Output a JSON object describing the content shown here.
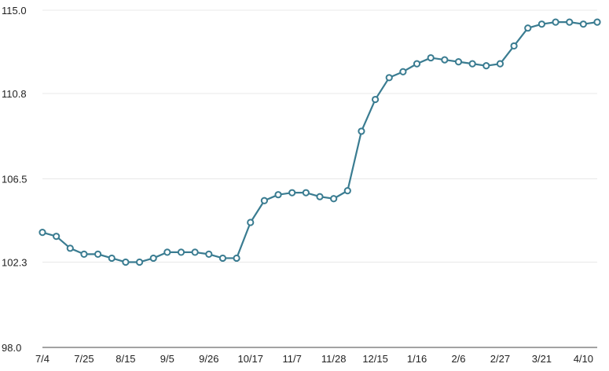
{
  "chart_data": {
    "type": "line",
    "ylim": [
      98.0,
      115.0
    ],
    "yticks": [
      "98.0",
      "102.3",
      "106.5",
      "110.8",
      "115.0"
    ],
    "xticks": [
      {
        "label": "7/4",
        "index": 0
      },
      {
        "label": "7/25",
        "index": 3
      },
      {
        "label": "8/15",
        "index": 6
      },
      {
        "label": "9/5",
        "index": 9
      },
      {
        "label": "9/26",
        "index": 12
      },
      {
        "label": "10/17",
        "index": 15
      },
      {
        "label": "11/7",
        "index": 18
      },
      {
        "label": "11/28",
        "index": 21
      },
      {
        "label": "12/15",
        "index": 24
      },
      {
        "label": "1/16",
        "index": 27
      },
      {
        "label": "2/6",
        "index": 30
      },
      {
        "label": "2/27",
        "index": 33
      },
      {
        "label": "3/21",
        "index": 36
      },
      {
        "label": "4/10",
        "index": 39
      }
    ],
    "series": [
      {
        "color": "#3a7c91",
        "values": [
          103.8,
          103.6,
          103.0,
          102.7,
          102.7,
          102.5,
          102.3,
          102.3,
          102.5,
          102.8,
          102.8,
          102.8,
          102.7,
          102.5,
          102.5,
          104.3,
          105.4,
          105.7,
          105.8,
          105.8,
          105.6,
          105.5,
          105.9,
          108.9,
          110.5,
          111.6,
          111.9,
          112.3,
          112.6,
          112.5,
          112.4,
          112.3,
          112.2,
          112.3,
          113.2,
          114.1,
          114.3,
          114.4,
          114.4,
          114.3,
          114.4
        ]
      }
    ],
    "grid": true
  }
}
